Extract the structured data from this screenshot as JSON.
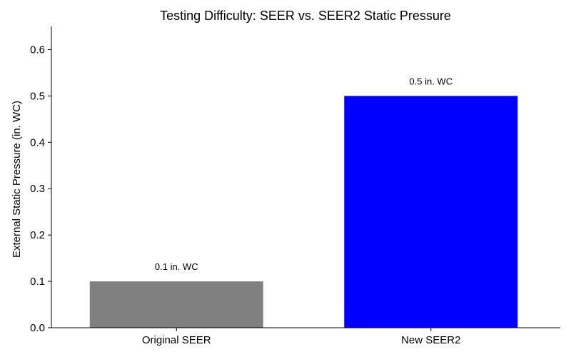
{
  "chart_data": {
    "type": "bar",
    "title": "Testing Difficulty: SEER vs. SEER2 Static Pressure",
    "xlabel": "",
    "ylabel": "External Static Pressure (in. WC)",
    "categories": [
      "Original SEER",
      "New SEER2"
    ],
    "values": [
      0.1,
      0.5
    ],
    "data_labels": [
      "0.1 in. WC",
      "0.5 in. WC"
    ],
    "colors": [
      "#808080",
      "#0000ff"
    ],
    "ylim": [
      0,
      0.65
    ],
    "yticks": [
      0.0,
      0.1,
      0.2,
      0.3,
      0.4,
      0.5,
      0.6
    ],
    "ytick_labels": [
      "0.0",
      "0.1",
      "0.2",
      "0.3",
      "0.4",
      "0.5",
      "0.6"
    ],
    "grid": false,
    "legend": "none"
  }
}
